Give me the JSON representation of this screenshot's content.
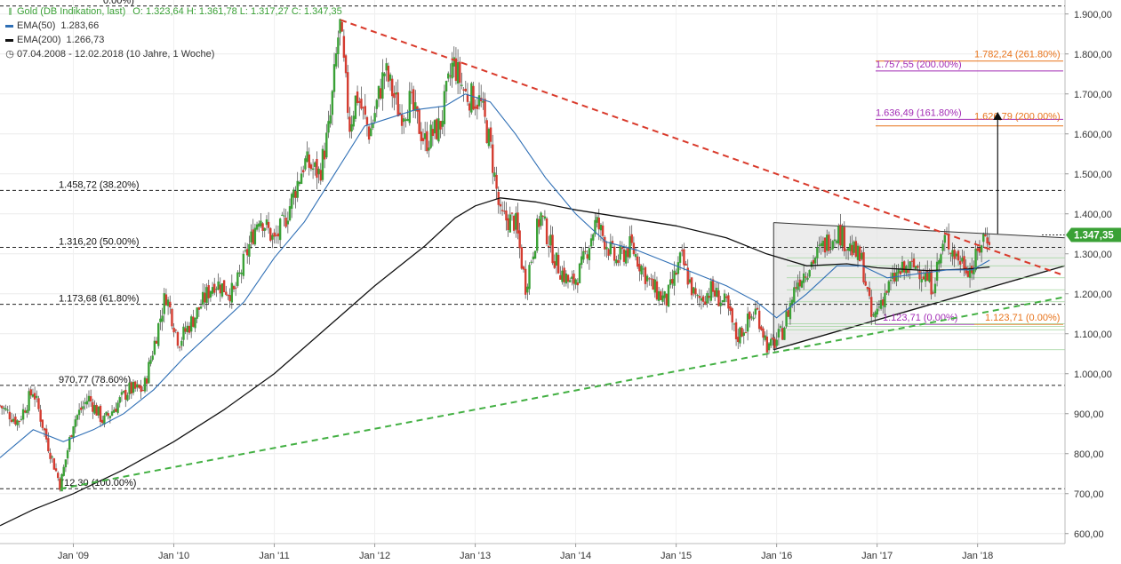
{
  "legend": {
    "title": "Gold (DB Indikation, last)",
    "ohlc": "O: 1.323,64  H: 1.361,78  L: 1.317,27  C: 1.347,35",
    "ema50_label": "EMA(50)",
    "ema50_value": "1.283,66",
    "ema200_label": "EMA(200)",
    "ema200_value": "1.266,73",
    "period": "07.04.2008 - 12.02.2018   (10 Jahre, 1 Woche)",
    "ohlc_icon": "candlestick-icon",
    "clock_icon": "clock-icon"
  },
  "colors": {
    "up": "#3aa136",
    "down": "#d43c30",
    "ema50": "#2f6fb5",
    "ema200": "#111111",
    "resistance": "#d93a2b",
    "support": "#43b043",
    "fib_orange": "#e8731a",
    "fib_purple": "#a22bb5",
    "triangle_fill": "#e6e6e6",
    "price_tag": "#3aa136"
  },
  "price_tag": "1.347,35",
  "chart_data": {
    "type": "candlestick",
    "title": "Gold (DB Indikation, last)",
    "y_ticks": [
      {
        "value": 1900,
        "label": "1.900,00"
      },
      {
        "value": 1800,
        "label": "1.800,00"
      },
      {
        "value": 1700,
        "label": "1.700,00"
      },
      {
        "value": 1600,
        "label": "1.600,00"
      },
      {
        "value": 1500,
        "label": "1.500,00"
      },
      {
        "value": 1400,
        "label": "1.400,00"
      },
      {
        "value": 1300,
        "label": "1.300,00"
      },
      {
        "value": 1200,
        "label": "1.200,00"
      },
      {
        "value": 1100,
        "label": "1.100,00"
      },
      {
        "value": 1000,
        "label": "1.000,00"
      },
      {
        "value": 900,
        "label": "900,00"
      },
      {
        "value": 800,
        "label": "800,00"
      },
      {
        "value": 700,
        "label": "700,00"
      },
      {
        "value": 600,
        "label": "600,00"
      }
    ],
    "ylim": [
      575,
      1935
    ],
    "xlim": [
      2008.27,
      2018.87
    ],
    "x_ticks": [
      {
        "value": 2009.0,
        "label": "Jan '09"
      },
      {
        "value": 2010.0,
        "label": "Jan '10"
      },
      {
        "value": 2011.0,
        "label": "Jan '11"
      },
      {
        "value": 2012.0,
        "label": "Jan '12"
      },
      {
        "value": 2013.0,
        "label": "Jan '13"
      },
      {
        "value": 2014.0,
        "label": "Jan '14"
      },
      {
        "value": 2015.0,
        "label": "Jan '15"
      },
      {
        "value": 2016.0,
        "label": "Jan '16"
      },
      {
        "value": 2017.0,
        "label": "Jan '17"
      },
      {
        "value": 2018.0,
        "label": "Jan '18"
      }
    ],
    "price_path": [
      [
        2008.27,
        920
      ],
      [
        2008.45,
        880
      ],
      [
        2008.6,
        960
      ],
      [
        2008.75,
        820
      ],
      [
        2008.87,
        720
      ],
      [
        2009.0,
        880
      ],
      [
        2009.15,
        940
      ],
      [
        2009.3,
        880
      ],
      [
        2009.55,
        960
      ],
      [
        2009.7,
        960
      ],
      [
        2009.92,
        1200
      ],
      [
        2010.05,
        1080
      ],
      [
        2010.2,
        1140
      ],
      [
        2010.4,
        1230
      ],
      [
        2010.6,
        1200
      ],
      [
        2010.85,
        1400
      ],
      [
        2011.0,
        1330
      ],
      [
        2011.1,
        1380
      ],
      [
        2011.3,
        1530
      ],
      [
        2011.45,
        1500
      ],
      [
        2011.55,
        1620
      ],
      [
        2011.65,
        1880
      ],
      [
        2011.75,
        1620
      ],
      [
        2011.82,
        1700
      ],
      [
        2011.95,
        1600
      ],
      [
        2012.1,
        1760
      ],
      [
        2012.25,
        1650
      ],
      [
        2012.35,
        1680
      ],
      [
        2012.5,
        1580
      ],
      [
        2012.65,
        1620
      ],
      [
        2012.78,
        1780
      ],
      [
        2012.9,
        1700
      ],
      [
        2013.05,
        1680
      ],
      [
        2013.15,
        1570
      ],
      [
        2013.25,
        1390
      ],
      [
        2013.4,
        1380
      ],
      [
        2013.5,
        1220
      ],
      [
        2013.65,
        1400
      ],
      [
        2013.8,
        1280
      ],
      [
        2013.95,
        1220
      ],
      [
        2014.05,
        1260
      ],
      [
        2014.2,
        1380
      ],
      [
        2014.4,
        1280
      ],
      [
        2014.55,
        1320
      ],
      [
        2014.75,
        1220
      ],
      [
        2014.9,
        1180
      ],
      [
        2015.05,
        1290
      ],
      [
        2015.2,
        1180
      ],
      [
        2015.35,
        1210
      ],
      [
        2015.5,
        1170
      ],
      [
        2015.6,
        1090
      ],
      [
        2015.8,
        1160
      ],
      [
        2015.92,
        1060
      ],
      [
        2016.05,
        1100
      ],
      [
        2016.2,
        1230
      ],
      [
        2016.35,
        1280
      ],
      [
        2016.5,
        1330
      ],
      [
        2016.6,
        1360
      ],
      [
        2016.75,
        1310
      ],
      [
        2016.85,
        1280
      ],
      [
        2016.95,
        1130
      ],
      [
        2017.05,
        1190
      ],
      [
        2017.2,
        1250
      ],
      [
        2017.4,
        1270
      ],
      [
        2017.55,
        1220
      ],
      [
        2017.68,
        1340
      ],
      [
        2017.8,
        1290
      ],
      [
        2017.95,
        1260
      ],
      [
        2018.05,
        1340
      ],
      [
        2018.12,
        1347
      ]
    ],
    "ema50_path": [
      [
        2008.27,
        790
      ],
      [
        2008.6,
        860
      ],
      [
        2008.9,
        830
      ],
      [
        2009.2,
        860
      ],
      [
        2009.5,
        900
      ],
      [
        2009.8,
        960
      ],
      [
        2010.1,
        1040
      ],
      [
        2010.4,
        1110
      ],
      [
        2010.7,
        1180
      ],
      [
        2011.0,
        1290
      ],
      [
        2011.3,
        1380
      ],
      [
        2011.6,
        1500
      ],
      [
        2011.9,
        1620
      ],
      [
        2012.15,
        1640
      ],
      [
        2012.4,
        1660
      ],
      [
        2012.7,
        1670
      ],
      [
        2012.9,
        1700
      ],
      [
        2013.15,
        1680
      ],
      [
        2013.4,
        1600
      ],
      [
        2013.7,
        1490
      ],
      [
        2014.0,
        1400
      ],
      [
        2014.3,
        1330
      ],
      [
        2014.6,
        1310
      ],
      [
        2014.9,
        1280
      ],
      [
        2015.2,
        1250
      ],
      [
        2015.5,
        1220
      ],
      [
        2015.8,
        1180
      ],
      [
        2016.0,
        1140
      ],
      [
        2016.3,
        1200
      ],
      [
        2016.6,
        1270
      ],
      [
        2016.85,
        1270
      ],
      [
        2017.1,
        1240
      ],
      [
        2017.4,
        1250
      ],
      [
        2017.7,
        1260
      ],
      [
        2017.95,
        1260
      ],
      [
        2018.12,
        1284
      ]
    ],
    "ema200_path": [
      [
        2008.27,
        620
      ],
      [
        2008.6,
        660
      ],
      [
        2009.0,
        700
      ],
      [
        2009.5,
        760
      ],
      [
        2010.0,
        830
      ],
      [
        2010.5,
        910
      ],
      [
        2011.0,
        1000
      ],
      [
        2011.5,
        1110
      ],
      [
        2012.0,
        1220
      ],
      [
        2012.5,
        1320
      ],
      [
        2012.8,
        1390
      ],
      [
        2013.0,
        1420
      ],
      [
        2013.25,
        1440
      ],
      [
        2013.6,
        1430
      ],
      [
        2014.0,
        1410
      ],
      [
        2014.5,
        1390
      ],
      [
        2015.0,
        1370
      ],
      [
        2015.5,
        1340
      ],
      [
        2015.9,
        1300
      ],
      [
        2016.3,
        1270
      ],
      [
        2016.7,
        1275
      ],
      [
        2017.0,
        1265
      ],
      [
        2017.5,
        1258
      ],
      [
        2017.9,
        1262
      ],
      [
        2018.12,
        1267
      ]
    ],
    "horizontal_levels": [
      {
        "value": 1920,
        "label": ""
      },
      {
        "value": 1458.72,
        "label": "1.458,72 (38.20%)"
      },
      {
        "value": 1316.2,
        "label": "1.316,20 (50.00%)"
      },
      {
        "value": 1173.68,
        "label": "1.173,68 (61.80%)"
      },
      {
        "value": 970.77,
        "label": "970,77 (78.60%)"
      },
      {
        "value": 712.3,
        "label": "712,30 (100.00%)"
      }
    ],
    "fib_top_partial_label": "0.00%)",
    "fib_extensions": [
      {
        "value": 1782.24,
        "label": "1.782,24 (261.80%)",
        "color": "orange"
      },
      {
        "value": 1757.55,
        "label": "1.757,55 (200.00%)",
        "color": "purple"
      },
      {
        "value": 1636.49,
        "label": "1.636,49 (161.80%)",
        "color": "purple"
      },
      {
        "value": 1626.79,
        "label": "1.626,79 (200.00%)",
        "color": "orange"
      },
      {
        "value": 1123.71,
        "label": "1.123,71 (0.00%)",
        "color": "orange"
      },
      {
        "value": 1123.71,
        "label": "1.123,71 (0.00%)",
        "color": "purple"
      }
    ],
    "resistance_trend": [
      [
        2011.66,
        1885
      ],
      [
        2018.87,
        1245
      ]
    ],
    "support_trend": [
      [
        2008.87,
        712
      ],
      [
        2018.87,
        1192
      ]
    ],
    "triangle": [
      [
        2015.97,
        1060
      ],
      [
        2015.97,
        1378
      ],
      [
        2018.87,
        1340
      ],
      [
        2018.87,
        1270
      ]
    ],
    "target_arrow": {
      "x": 2018.2,
      "from": 1350,
      "to": 1655
    },
    "last_price": 1347.35
  }
}
